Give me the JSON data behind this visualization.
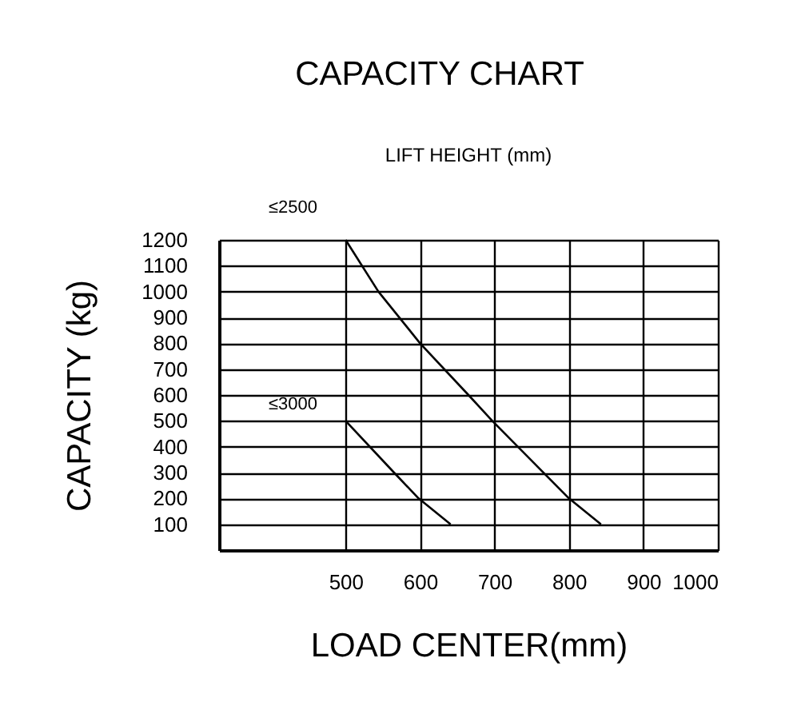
{
  "chart_data": {
    "type": "line",
    "title": "CAPACITY CHART",
    "xlabel": "LOAD CENTER(mm)",
    "ylabel": "CAPACITY (kg)",
    "legend_title": "LIFT HEIGHT (mm)",
    "series": [
      {
        "name": "≤2500",
        "color": "#000000",
        "x": [
          500,
          544,
          600,
          665,
          697,
          800,
          843
        ],
        "values": [
          1200,
          1000,
          800,
          600,
          500,
          200,
          100
        ]
      },
      {
        "name": "≤3000",
        "color": "#000000",
        "x": [
          500,
          565,
          598,
          641
        ],
        "values": [
          500,
          300,
          200,
          100
        ]
      }
    ],
    "xlim": [
      330,
      1000
    ],
    "xticks": [
      500,
      600,
      700,
      800,
      900,
      1000
    ],
    "ylim": [
      0,
      1200
    ],
    "yticks": [
      100,
      200,
      300,
      400,
      500,
      600,
      700,
      800,
      900,
      1000,
      1100,
      1200
    ],
    "grid": true,
    "legend": false,
    "marker": "none",
    "line_style": "solid"
  }
}
